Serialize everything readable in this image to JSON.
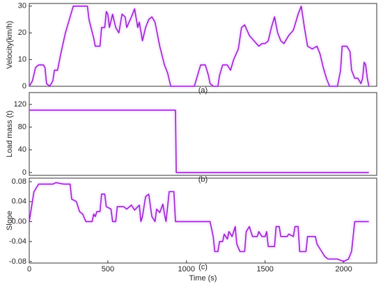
{
  "chart_data": [
    {
      "type": "line",
      "ylabel": "Velocity(km/h)",
      "annotation": "(a)",
      "color": "#a020d0",
      "xlim": [
        0,
        2210
      ],
      "ylim": [
        0,
        31
      ],
      "yticks": [
        0,
        10,
        20,
        30
      ],
      "x": [
        0,
        20,
        40,
        60,
        90,
        100,
        110,
        130,
        150,
        160,
        180,
        200,
        230,
        260,
        280,
        370,
        380,
        410,
        420,
        450,
        460,
        480,
        490,
        500,
        510,
        530,
        550,
        570,
        590,
        610,
        620,
        650,
        670,
        690,
        700,
        720,
        740,
        760,
        780,
        800,
        830,
        860,
        880,
        900,
        920,
        1050,
        1070,
        1090,
        1120,
        1140,
        1150,
        1170,
        1200,
        1210,
        1230,
        1260,
        1280,
        1300,
        1330,
        1350,
        1370,
        1400,
        1430,
        1460,
        1480,
        1500,
        1520,
        1540,
        1560,
        1580,
        1600,
        1620,
        1650,
        1680,
        1710,
        1730,
        1750,
        1770,
        1800,
        1830,
        1850,
        1870,
        1890,
        1910,
        1960,
        1980,
        1990,
        2020,
        2040,
        2050,
        2070,
        2090,
        2110,
        2120,
        2130,
        2140,
        2150,
        2160
      ],
      "values": [
        0,
        2,
        7,
        8,
        8,
        7,
        1,
        0,
        2,
        6,
        6,
        12,
        20,
        26,
        30,
        30,
        25,
        18,
        15,
        15,
        22,
        22,
        28,
        27,
        22,
        27,
        22,
        20,
        27,
        26,
        22,
        26,
        29,
        22,
        24,
        17,
        22,
        25,
        26,
        24,
        15,
        8,
        5,
        0,
        0,
        0,
        4,
        8,
        8,
        4,
        1,
        0,
        0,
        4,
        8,
        8,
        6,
        10,
        14,
        22,
        23,
        19,
        17,
        15,
        16,
        16,
        17,
        22,
        26,
        20,
        17,
        16,
        19,
        21,
        27,
        30,
        22,
        15,
        14,
        15,
        12,
        7,
        3,
        0,
        0,
        6,
        15,
        15,
        13,
        6,
        3,
        3,
        1,
        3,
        9,
        8,
        3,
        0
      ]
    },
    {
      "type": "line",
      "ylabel": "Load mass (t)",
      "annotation": "(b)",
      "color": "#a020d0",
      "xlim": [
        0,
        2210
      ],
      "ylim": [
        -5,
        141
      ],
      "yticks": [
        0,
        40,
        80,
        120
      ],
      "x": [
        0,
        930,
        935,
        2160
      ],
      "values": [
        110,
        110,
        0,
        0
      ]
    },
    {
      "type": "line",
      "ylabel": "Slope",
      "annotation": "(c)",
      "xlabel": "Time (s)",
      "color": "#a020d0",
      "xlim": [
        0,
        2210
      ],
      "ylim": [
        -0.083,
        0.087
      ],
      "yticks": [
        -0.08,
        -0.04,
        {
          "value": 0,
          "label": "0.00"
        },
        0.04,
        0.08
      ],
      "xticks": [
        0,
        500,
        1000,
        1500,
        2000
      ],
      "x": [
        0,
        30,
        60,
        150,
        170,
        220,
        260,
        270,
        300,
        320,
        340,
        360,
        400,
        410,
        420,
        430,
        450,
        460,
        480,
        490,
        520,
        530,
        550,
        560,
        600,
        620,
        650,
        670,
        700,
        710,
        720,
        740,
        760,
        780,
        800,
        810,
        830,
        850,
        860,
        870,
        890,
        920,
        930,
        1150,
        1170,
        1180,
        1200,
        1210,
        1230,
        1240,
        1260,
        1270,
        1290,
        1310,
        1320,
        1340,
        1370,
        1380,
        1400,
        1420,
        1450,
        1460,
        1480,
        1500,
        1510,
        1520,
        1560,
        1570,
        1590,
        1600,
        1640,
        1650,
        1680,
        1690,
        1710,
        1720,
        1760,
        1770,
        1820,
        1830,
        1860,
        1880,
        1900,
        1960,
        2000,
        2030,
        2050,
        2070,
        2160
      ],
      "values": [
        0,
        0.06,
        0.075,
        0.075,
        0.078,
        0.075,
        0.075,
        0.045,
        0.04,
        0.02,
        0.015,
        0,
        0,
        0.015,
        0.01,
        0.02,
        0.02,
        0.055,
        0.055,
        0.03,
        0.025,
        0,
        0,
        0.03,
        0.03,
        0.025,
        0.033,
        0.023,
        0.033,
        0,
        0.01,
        0.05,
        0.055,
        0.01,
        0,
        0.025,
        0.018,
        0.035,
        0.015,
        0,
        0.06,
        0.06,
        0,
        0,
        -0.03,
        -0.06,
        -0.06,
        -0.04,
        -0.04,
        -0.025,
        -0.035,
        -0.02,
        -0.03,
        -0.01,
        -0.045,
        -0.06,
        -0.06,
        -0.02,
        -0.01,
        -0.03,
        -0.03,
        -0.02,
        -0.03,
        -0.03,
        -0.02,
        -0.05,
        -0.05,
        -0.01,
        -0.01,
        -0.03,
        -0.03,
        -0.025,
        -0.03,
        -0.01,
        -0.01,
        -0.06,
        -0.06,
        -0.03,
        -0.03,
        -0.045,
        -0.06,
        -0.07,
        -0.075,
        -0.075,
        -0.08,
        -0.075,
        -0.06,
        0,
        0
      ]
    }
  ]
}
